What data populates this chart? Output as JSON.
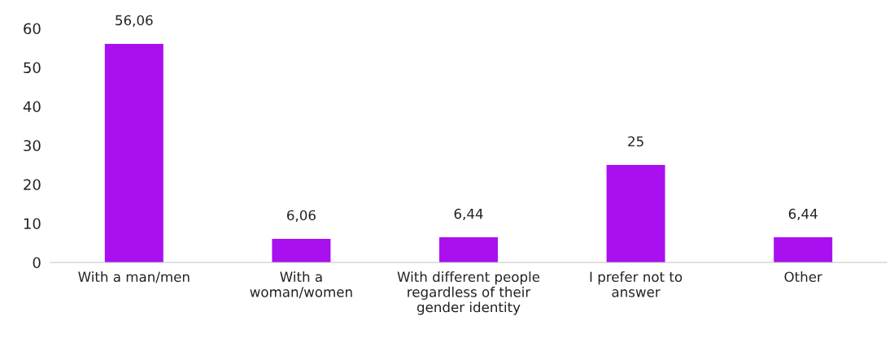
{
  "chart_data": {
    "type": "bar",
    "categories": [
      "With a man/men",
      "With a\nwoman/women",
      "With different people\nregardless of their\ngender identity",
      "I prefer not to\nanswer",
      "Other"
    ],
    "values": [
      56.06,
      6.06,
      6.44,
      25,
      6.44
    ],
    "value_labels": [
      "56,06",
      "6,06",
      "6,44",
      "25",
      "6,44"
    ],
    "color": "#aa0ff0",
    "ylim": [
      0,
      60
    ],
    "yticks": [
      0,
      10,
      20,
      30,
      40,
      50,
      60
    ],
    "grid": false,
    "legend": false
  }
}
